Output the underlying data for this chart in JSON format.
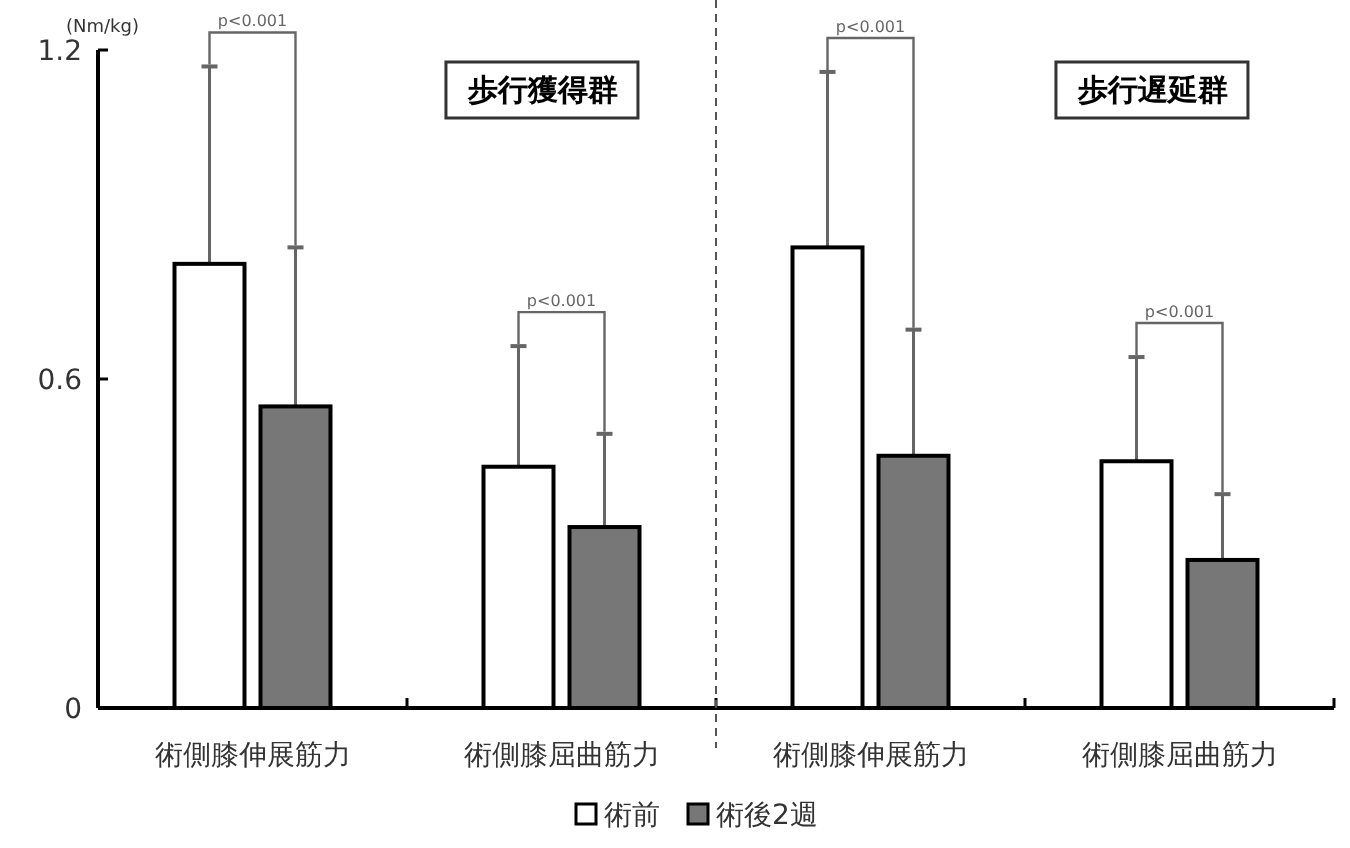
{
  "chart_data": {
    "type": "bar",
    "ylabel": "(Nm/kg)",
    "categories": [
      "術側膝伸展筋力",
      "術側膝屈曲筋力",
      "術側膝伸展筋力",
      "術側膝屈曲筋力"
    ],
    "series": [
      {
        "name": "術前",
        "color": "#ffffff",
        "values": [
          0.81,
          0.44,
          0.84,
          0.45
        ],
        "errors": [
          [
            0.81,
            1.17
          ],
          [
            0.44,
            0.66
          ],
          [
            0.84,
            1.16
          ],
          [
            0.45,
            0.64
          ]
        ]
      },
      {
        "name": "術後2週",
        "color": "#777777",
        "values": [
          0.55,
          0.33,
          0.46,
          0.27
        ],
        "errors": [
          [
            0.55,
            0.84
          ],
          [
            0.33,
            0.5
          ],
          [
            0.46,
            0.69
          ],
          [
            0.27,
            0.39
          ]
        ]
      }
    ],
    "ylim": [
      0,
      1.2
    ],
    "yticks": [
      0,
      0.6,
      1.2
    ],
    "annotations": [
      "歩行獲得群",
      "歩行遅延群",
      "p<0.001",
      "p<0.001",
      "p<0.001",
      "p<0.001"
    ],
    "legend": "bottom",
    "grid": false
  }
}
